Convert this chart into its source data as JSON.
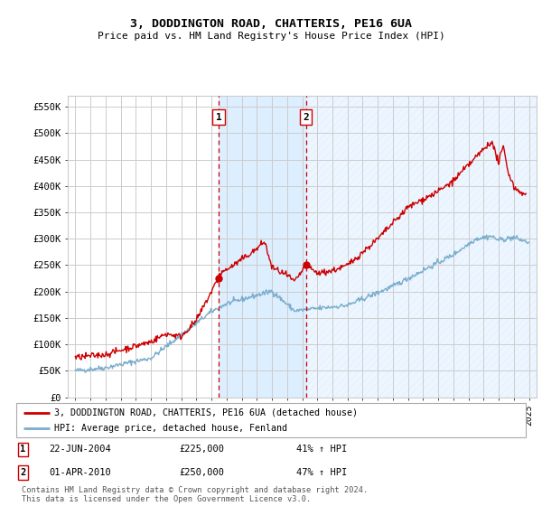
{
  "title": "3, DODDINGTON ROAD, CHATTERIS, PE16 6UA",
  "subtitle": "Price paid vs. HM Land Registry's House Price Index (HPI)",
  "legend_line1": "3, DODDINGTON ROAD, CHATTERIS, PE16 6UA (detached house)",
  "legend_line2": "HPI: Average price, detached house, Fenland",
  "footnote": "Contains HM Land Registry data © Crown copyright and database right 2024.\nThis data is licensed under the Open Government Licence v3.0.",
  "transactions": [
    {
      "label": "1",
      "date": "22-JUN-2004",
      "price": 225000,
      "pct": "41% ↑ HPI",
      "x_year": 2004.47
    },
    {
      "label": "2",
      "date": "01-APR-2010",
      "price": 250000,
      "pct": "47% ↑ HPI",
      "x_year": 2010.25
    }
  ],
  "red_color": "#cc0000",
  "blue_color": "#7aadcc",
  "shaded_color": "#ddeeff",
  "grid_color": "#cccccc",
  "background_color": "#ffffff",
  "ylim": [
    0,
    570000
  ],
  "xlim_start": 1994.5,
  "xlim_end": 2025.5,
  "yticks": [
    0,
    50000,
    100000,
    150000,
    200000,
    250000,
    300000,
    350000,
    400000,
    450000,
    500000,
    550000
  ],
  "hatch_color": "#bbccdd"
}
